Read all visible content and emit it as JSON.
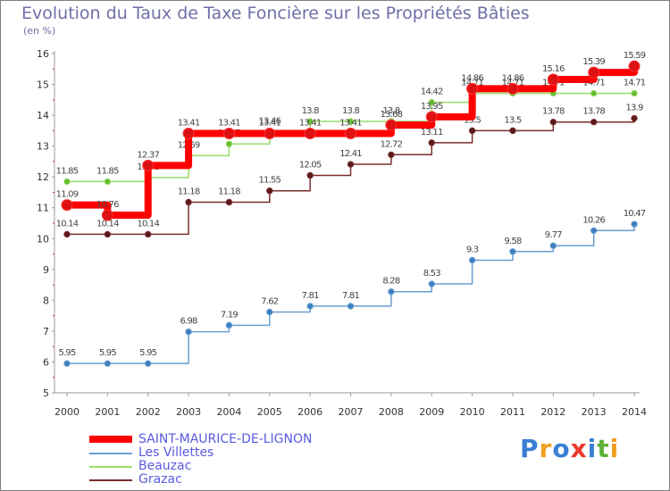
{
  "chart_data": {
    "type": "line",
    "title": "Evolution du Taux de Taxe Foncière sur les Propriétés Bâties",
    "subtitle": "(en %)",
    "xlabel": "",
    "ylabel": "(en %)",
    "ylim": [
      5,
      16
    ],
    "yticks": [
      "5",
      "6",
      "7",
      "8",
      "9",
      "10",
      "11",
      "12",
      "13",
      "14",
      "15",
      "16"
    ],
    "categories": [
      "2000",
      "2001",
      "2002",
      "2003",
      "2004",
      "2005",
      "2006",
      "2007",
      "2008",
      "2009",
      "2010",
      "2011",
      "2012",
      "2013",
      "2014"
    ],
    "grid": false,
    "legend_position": "bottom-left",
    "series": [
      {
        "name": "SAINT-MAURICE-DE-LIGNON",
        "color": "#ff0000",
        "marker_color": "#dd1111",
        "values": [
          11.09,
          10.76,
          12.37,
          13.41,
          13.41,
          13.41,
          13.41,
          13.41,
          13.68,
          13.95,
          14.86,
          14.86,
          15.16,
          15.39,
          15.59
        ],
        "labels": [
          "11.09",
          "10.76",
          "12.37",
          "13.41",
          "13.41",
          "13.41",
          "13.41",
          "13.41",
          "13.68",
          "13.95",
          "14.86",
          "14.86",
          "15.16",
          "15.39",
          "15.59"
        ]
      },
      {
        "name": "Les Villettes",
        "color": "#6a9fd0",
        "marker_color": "#3b7fc0",
        "values": [
          5.95,
          5.95,
          5.95,
          6.98,
          7.19,
          7.62,
          7.81,
          7.81,
          8.28,
          8.53,
          9.3,
          9.58,
          9.77,
          10.26,
          10.47
        ],
        "labels": [
          "5.95",
          "5.95",
          "5.95",
          "6.98",
          "7.19",
          "7.62",
          "7.81",
          "7.81",
          "8.28",
          "8.53",
          "9.3",
          "9.58",
          "9.77",
          "10.26",
          "10.47"
        ]
      },
      {
        "name": "Beauzac",
        "color": "#99dd66",
        "marker_color": "#66bb33",
        "values": [
          11.85,
          11.85,
          11.98,
          12.69,
          13.07,
          13.46,
          13.8,
          13.8,
          13.8,
          14.42,
          14.71,
          14.71,
          14.71,
          14.71,
          14.71
        ],
        "labels": [
          "11.85",
          "11.85",
          "11.98",
          "12.69",
          "13.07",
          "13.46",
          "13.8",
          "13.8",
          "13.8",
          "14.42",
          "14.71",
          "14.71",
          "14.71",
          "14.71",
          "14.71"
        ]
      },
      {
        "name": "Grazac",
        "color": "#7a2e2e",
        "marker_color": "#5a1a1a",
        "values": [
          10.14,
          10.14,
          10.14,
          11.18,
          11.18,
          11.55,
          12.05,
          12.41,
          12.72,
          13.11,
          13.5,
          13.5,
          13.78,
          13.78,
          13.9
        ],
        "labels": [
          "10.14",
          "10.14",
          "10.14",
          "11.18",
          "11.18",
          "11.55",
          "12.05",
          "12.41",
          "12.72",
          "13.11",
          "13.5",
          "13.5",
          "13.78",
          "13.78",
          "13.9"
        ]
      }
    ]
  },
  "logo": {
    "letters": [
      "P",
      "r",
      "o",
      "x",
      "i",
      "t",
      "i"
    ],
    "colors": [
      "#3a7fd5",
      "#f0a020",
      "#3a7fd5",
      "#e83a2a",
      "#3a7fd5",
      "#5fb33a",
      "#f0a020"
    ]
  }
}
